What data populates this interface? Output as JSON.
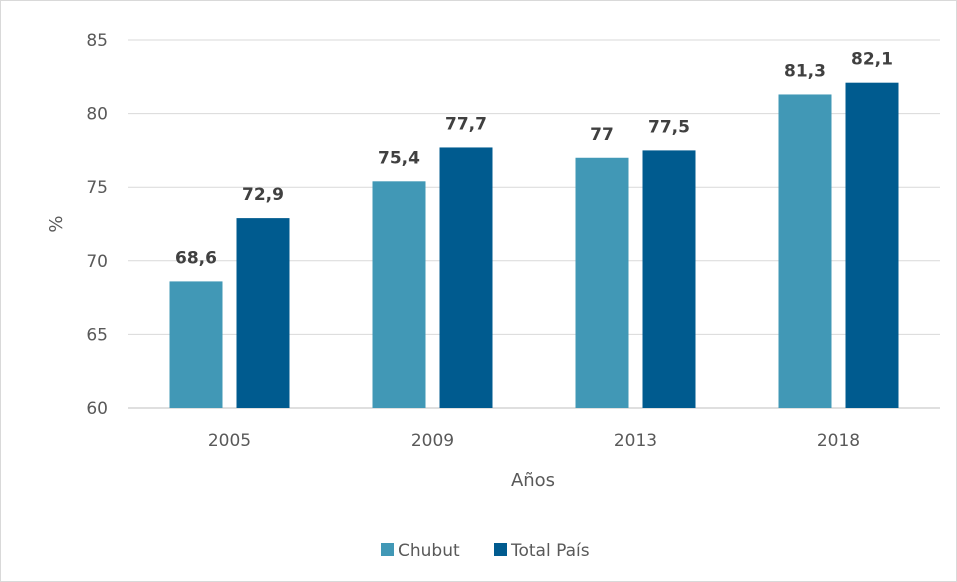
{
  "chart_data": {
    "type": "bar",
    "categories": [
      "2005",
      "2009",
      "2013",
      "2018"
    ],
    "series": [
      {
        "name": "Chubut",
        "values": [
          68.6,
          75.4,
          77,
          81.3
        ],
        "labels": [
          "68,6",
          "75,4",
          "77",
          "81,3"
        ],
        "color": "#4198B6"
      },
      {
        "name": "Total País",
        "values": [
          72.9,
          77.7,
          77.5,
          82.1
        ],
        "labels": [
          "72,9",
          "77,7",
          "77,5",
          "82,1"
        ],
        "color": "#005B8F"
      }
    ],
    "xlabel": "Años",
    "ylabel": "%",
    "ylim": [
      60,
      85
    ],
    "yticks": [
      "60",
      "65",
      "70",
      "75",
      "80",
      "85"
    ],
    "grid": true,
    "legend_position": "bottom"
  }
}
